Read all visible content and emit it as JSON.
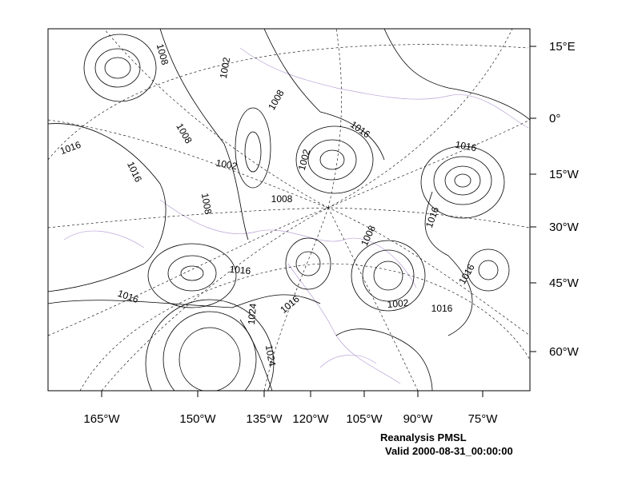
{
  "axes": {
    "bottom_labels": [
      "165°W",
      "150°W",
      "135°W",
      "120°W",
      "105°W",
      "90°W",
      "75°W"
    ],
    "right_labels": [
      "15°E",
      "0°",
      "15°W",
      "30°W",
      "45°W",
      "60°W"
    ]
  },
  "contour_labels": [
    "1008",
    "1002",
    "1008",
    "1016",
    "1016",
    "1008",
    "1016",
    "1002",
    "1002",
    "1008",
    "1008",
    "1016",
    "1016",
    "1008",
    "1016",
    "1016",
    "1016",
    "1002",
    "1016",
    "1024",
    "1016",
    "1024"
  ],
  "caption": {
    "title": "Reanalysis PMSL",
    "valid": "Valid 2000-08-31_00:00:00"
  }
}
